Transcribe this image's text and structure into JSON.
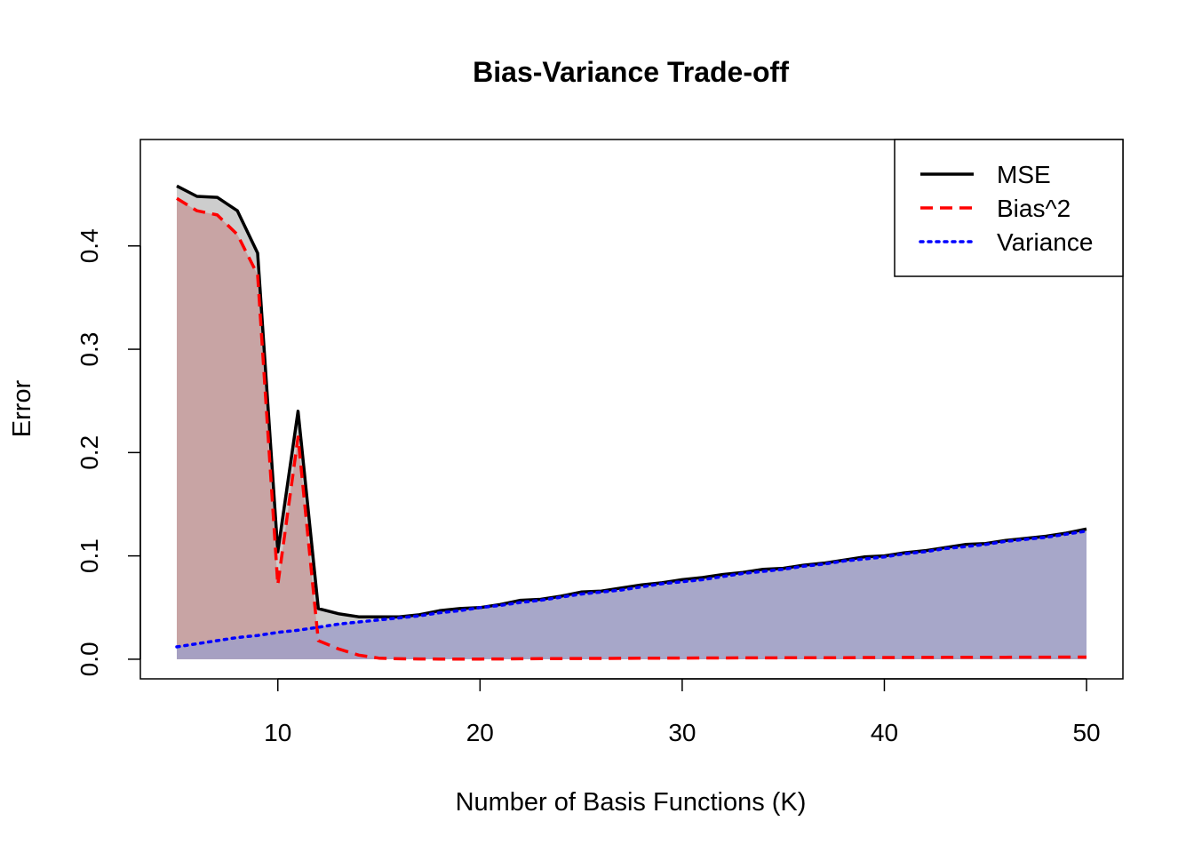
{
  "chart_data": {
    "type": "area",
    "title": "Bias-Variance Trade-off",
    "xlabel": "Number of Basis Functions (K)",
    "ylabel": "Error",
    "xlim": [
      3.2,
      51.8
    ],
    "ylim": [
      -0.019,
      0.503
    ],
    "x_ticks": [
      10,
      20,
      30,
      40,
      50
    ],
    "y_ticks": [
      0.0,
      0.1,
      0.2,
      0.3,
      0.4
    ],
    "x_tick_labels": [
      "10",
      "20",
      "30",
      "40",
      "50"
    ],
    "y_tick_labels": [
      "0.0",
      "0.1",
      "0.2",
      "0.3",
      "0.4"
    ],
    "legend_position": "top-right",
    "grid": false,
    "x": [
      5,
      6,
      7,
      8,
      9,
      10,
      11,
      12,
      13,
      14,
      15,
      16,
      17,
      18,
      19,
      20,
      21,
      22,
      23,
      24,
      25,
      26,
      27,
      28,
      29,
      30,
      31,
      32,
      33,
      34,
      35,
      36,
      37,
      38,
      39,
      40,
      41,
      42,
      43,
      44,
      45,
      46,
      47,
      48,
      49,
      50
    ],
    "series": [
      {
        "name": "MSE",
        "color": "#000000",
        "dash": "solid",
        "fill": "#c8c8c8",
        "values": [
          0.458,
          0.448,
          0.447,
          0.434,
          0.393,
          0.104,
          0.24,
          0.049,
          0.044,
          0.041,
          0.041,
          0.041,
          0.043,
          0.047,
          0.049,
          0.05,
          0.053,
          0.057,
          0.058,
          0.061,
          0.065,
          0.066,
          0.069,
          0.072,
          0.074,
          0.077,
          0.079,
          0.082,
          0.084,
          0.087,
          0.088,
          0.091,
          0.093,
          0.096,
          0.099,
          0.1,
          0.103,
          0.105,
          0.108,
          0.111,
          0.112,
          0.115,
          0.117,
          0.119,
          0.122,
          0.126
        ]
      },
      {
        "name": "Bias^2",
        "color": "#ff0000",
        "dash": "dashed",
        "fill": "#c8a0a0",
        "values": [
          0.446,
          0.434,
          0.43,
          0.411,
          0.372,
          0.072,
          0.215,
          0.018,
          0.01,
          0.004,
          0.001,
          0.0004,
          0.0003,
          0.0002,
          0.0002,
          0.0002,
          0.0003,
          0.0004,
          0.0005,
          0.0006,
          0.0007,
          0.0008,
          0.0009,
          0.001,
          0.001,
          0.0011,
          0.0012,
          0.0012,
          0.0013,
          0.0013,
          0.0014,
          0.0014,
          0.0015,
          0.0015,
          0.0016,
          0.0016,
          0.0017,
          0.0017,
          0.0018,
          0.0018,
          0.0019,
          0.0019,
          0.002,
          0.002,
          0.0021,
          0.0021
        ]
      },
      {
        "name": "Variance",
        "color": "#0000ff",
        "dash": "dotted",
        "fill": "#a0a0c8",
        "values": [
          0.012,
          0.015,
          0.018,
          0.021,
          0.023,
          0.026,
          0.028,
          0.031,
          0.034,
          0.036,
          0.038,
          0.04,
          0.042,
          0.045,
          0.047,
          0.05,
          0.052,
          0.055,
          0.057,
          0.06,
          0.063,
          0.065,
          0.067,
          0.07,
          0.073,
          0.075,
          0.077,
          0.08,
          0.083,
          0.085,
          0.087,
          0.09,
          0.092,
          0.095,
          0.097,
          0.099,
          0.102,
          0.104,
          0.107,
          0.109,
          0.111,
          0.114,
          0.116,
          0.118,
          0.121,
          0.124
        ]
      }
    ]
  }
}
